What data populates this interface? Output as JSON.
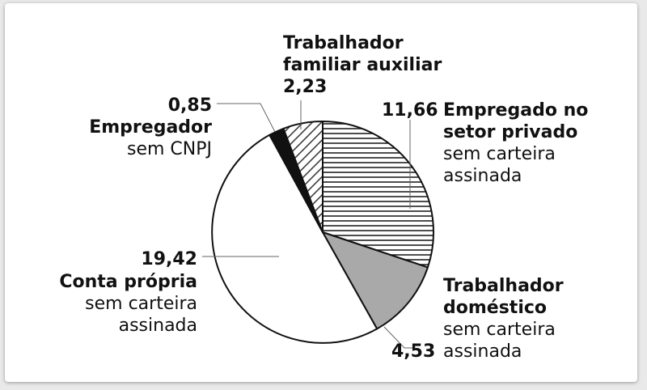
{
  "chart_data": {
    "type": "pie",
    "slices": [
      {
        "value": 11.66,
        "label_lines": [
          "Empregado no",
          "setor privado"
        ],
        "sub_lines": [
          "sem carteira",
          "assinada"
        ],
        "value_label": "11,66",
        "fill": "hatch-horizontal",
        "color": "#ffffff"
      },
      {
        "value": 4.53,
        "label_lines": [
          "Trabalhador",
          "doméstico"
        ],
        "sub_lines": [
          "sem carteira",
          "assinada"
        ],
        "value_label": "4,53",
        "fill": "solid",
        "color": "#a9a9a9"
      },
      {
        "value": 19.42,
        "label_lines": [
          "Conta própria"
        ],
        "sub_lines": [
          "sem carteira",
          "assinada"
        ],
        "value_label": "19,42",
        "fill": "solid",
        "color": "#ffffff"
      },
      {
        "value": 0.85,
        "label_lines": [
          "Empregador"
        ],
        "sub_lines": [
          "sem CNPJ"
        ],
        "value_label": "0,85",
        "fill": "solid",
        "color": "#111111"
      },
      {
        "value": 2.23,
        "label_lines": [
          "Trabalhador",
          "familiar auxiliar"
        ],
        "sub_lines": [],
        "value_label": "2,23",
        "fill": "hatch-diagonal",
        "color": "#ffffff"
      }
    ]
  }
}
